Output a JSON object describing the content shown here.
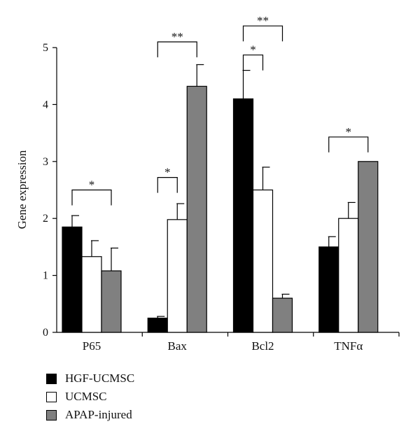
{
  "chart_data": {
    "type": "bar",
    "title": "",
    "xlabel": "",
    "ylabel": "Gene expression",
    "ylim": [
      0,
      5
    ],
    "yticks": [
      "0",
      "1",
      "2",
      "3",
      "4",
      "5"
    ],
    "grid": false,
    "legend_position": "bottom-left",
    "categories": [
      "P65",
      "Bax",
      "Bcl2",
      "TNFα"
    ],
    "series": [
      {
        "name": "HGF-UCMSC",
        "color": "#000000",
        "values": [
          1.85,
          0.25,
          4.1,
          1.5
        ],
        "errors": [
          0.2,
          0.03,
          0.5,
          0.18
        ]
      },
      {
        "name": "UCMSC",
        "color": "#ffffff",
        "values": [
          1.33,
          1.98,
          2.5,
          2.0
        ],
        "errors": [
          0.28,
          0.28,
          0.4,
          0.28
        ]
      },
      {
        "name": "APAP-injured",
        "color": "#808080",
        "values": [
          1.08,
          4.32,
          0.6,
          3.0
        ],
        "errors": [
          0.4,
          0.38,
          0.07,
          0.0
        ]
      }
    ],
    "significance": [
      {
        "category": "P65",
        "from": "HGF-UCMSC",
        "to": "APAP-injured",
        "label": "*",
        "level": 2.5
      },
      {
        "category": "Bax",
        "from": "HGF-UCMSC",
        "to": "UCMSC",
        "label": "*",
        "level": 2.72
      },
      {
        "category": "Bax",
        "from": "HGF-UCMSC",
        "to": "APAP-injured",
        "label": "**",
        "level": 5.1
      },
      {
        "category": "Bcl2",
        "from": "HGF-UCMSC",
        "to": "UCMSC",
        "label": "*",
        "level": 4.87
      },
      {
        "category": "Bcl2",
        "from": "HGF-UCMSC",
        "to": "APAP-injured",
        "label": "**",
        "level": 5.38
      },
      {
        "category": "TNFα",
        "from": "HGF-UCMSC",
        "to": "APAP-injured",
        "label": "*",
        "level": 3.43
      }
    ]
  }
}
